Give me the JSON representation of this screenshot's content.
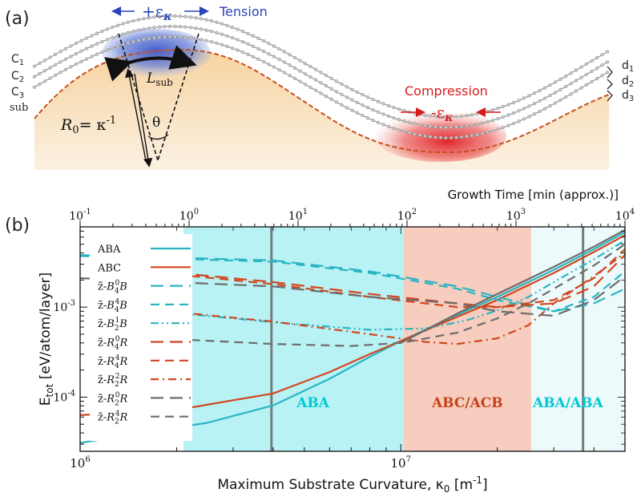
{
  "panel_a": {
    "label": "(a)",
    "tension_label": "Tension",
    "tension_sign": "+ε",
    "tension_sub": "κ",
    "compression_label": "Compression",
    "compression_sign": "-ε",
    "compression_sub": "κ",
    "layer_labels": [
      "C1",
      "C2",
      "C3",
      "sub"
    ],
    "spacing_labels": [
      "d1",
      "d2",
      "d3"
    ],
    "lsub_label": "L",
    "lsub_sub": "sub",
    "radius_label": "R",
    "radius_sub": "0",
    "radius_eq": "= κ",
    "radius_exp": "-1",
    "theta_label": "θ"
  },
  "panel_b": {
    "label": "(b)",
    "top_axis_label": "Growth Time [min (approx.)]",
    "top_ticks": [
      {
        "base": "10",
        "exp": "-1",
        "value": 0.1
      },
      {
        "base": "10",
        "exp": "0",
        "value": 1
      },
      {
        "base": "10",
        "exp": "1",
        "value": 10
      },
      {
        "base": "10",
        "exp": "2",
        "value": 100
      },
      {
        "base": "10",
        "exp": "3",
        "value": 1000
      },
      {
        "base": "10",
        "exp": "4",
        "value": 10000
      }
    ],
    "y_label": "E",
    "y_label_sub": "tot",
    "y_label_unit": " [eV/atom/layer]",
    "x_label": "Maximum Substrate Curvature, κ",
    "x_label_sub": "0",
    "x_label_unit": " [m",
    "x_label_exp": "-1",
    "x_label_end": "]",
    "x_ticks": [
      {
        "base": "10",
        "exp": "6",
        "value": 1000000
      },
      {
        "base": "10",
        "exp": "7",
        "value": 10000000
      }
    ],
    "y_ticks": [
      {
        "base": "10",
        "exp": "-4",
        "value": 0.0001
      },
      {
        "base": "10",
        "exp": "-3",
        "value": 0.001
      }
    ],
    "regions": [
      {
        "label": "ABA",
        "color": "#00c8d2"
      },
      {
        "label": "ABC/ACB",
        "color": "#c8401a"
      },
      {
        "label": "ABA/ABA",
        "color": "#00c8d2"
      }
    ],
    "legend": [
      {
        "text": "ABA",
        "color": "#2ab5c2",
        "dash": "solid"
      },
      {
        "text": "ABC",
        "color": "#d2461e",
        "dash": "solid"
      },
      {
        "pre": "z̃-",
        "sym": "B",
        "sub": "4",
        "sup": "0",
        "post": "B",
        "color": "#2ab5c2",
        "dash": "longdash"
      },
      {
        "pre": "z̃-",
        "sym": "B",
        "sub": "4",
        "sup": "4",
        "post": "B",
        "color": "#2ab5c2",
        "dash": "dash"
      },
      {
        "pre": "z̃-",
        "sym": "B",
        "sub": "2",
        "sup": "1",
        "post": "B",
        "color": "#2ab5c2",
        "dash": "dashdotdot"
      },
      {
        "pre": "z̃-",
        "sym": "R",
        "sub": "4",
        "sup": "0",
        "post": "R",
        "color": "#d2461e",
        "dash": "longdash"
      },
      {
        "pre": "z̃-",
        "sym": "R",
        "sub": "4",
        "sup": "4",
        "post": "R",
        "color": "#d2461e",
        "dash": "dash"
      },
      {
        "pre": "z̃-",
        "sym": "R",
        "sub": "2",
        "sup": "2",
        "post": "R",
        "color": "#d2461e",
        "dash": "dashdot"
      },
      {
        "pre": "z̃-",
        "sym": "R",
        "sub": "2",
        "sup": "0",
        "post": "R",
        "color": "#6d6d6d",
        "dash": "longdash"
      },
      {
        "pre": "z̃-",
        "sym": "R",
        "sub": "2",
        "sup": "4",
        "post": "R",
        "color": "#6d6d6d",
        "dash": "dash"
      }
    ]
  },
  "chart_data": {
    "type": "line",
    "xscale": "log",
    "yscale": "log",
    "xlim": [
      1000000,
      50000000
    ],
    "ylim": [
      2.5e-05,
      0.0078
    ],
    "x2lim": [
      0.1,
      10000
    ],
    "xlabel": "Maximum Substrate Curvature, κ0 [m-1]",
    "ylabel": "Etot [eV/atom/layer]",
    "x2label": "Growth Time [min (approx.)]",
    "shaded_regions": [
      {
        "label": "ABA",
        "x": [
          2100000,
          10200000
        ],
        "color": "#b8f2f4"
      },
      {
        "label": "ABC/ACB",
        "x": [
          10200000,
          25500000
        ],
        "color": "#f6cdbe"
      },
      {
        "label": "ABA/ABA",
        "x": [
          25500000,
          50000000
        ],
        "color": "#ecfafb"
      }
    ],
    "vertical_lines": [
      3950000,
      37000000
    ],
    "series": [
      {
        "name": "ABA",
        "color": "#2ab5c2",
        "dash": "solid",
        "points": [
          [
            1000000,
            3.1e-05
          ],
          [
            2500000,
            5.2e-05
          ],
          [
            4000000,
            8.1e-05
          ],
          [
            6000000,
            0.00016
          ],
          [
            8000000,
            0.00028
          ],
          [
            10000000,
            0.00042
          ],
          [
            15000000,
            0.00082
          ],
          [
            20000000,
            0.0013
          ],
          [
            30000000,
            0.0026
          ],
          [
            40000000,
            0.0044
          ],
          [
            50000000,
            0.0068
          ]
        ]
      },
      {
        "name": "ABC",
        "color": "#d2461e",
        "dash": "solid",
        "points": [
          [
            1000000,
            6.3e-05
          ],
          [
            2000000,
            7.2e-05
          ],
          [
            4000000,
            0.00011
          ],
          [
            6000000,
            0.00019
          ],
          [
            8000000,
            0.0003
          ],
          [
            10000000,
            0.00042
          ],
          [
            15000000,
            0.00078
          ],
          [
            20000000,
            0.0012
          ],
          [
            30000000,
            0.0024
          ],
          [
            40000000,
            0.0041
          ],
          [
            50000000,
            0.0063
          ]
        ]
      },
      {
        "name": "z̃-B40B",
        "color": "#2ab5c2",
        "dash": "longdash",
        "points": [
          [
            1000000,
            0.0038
          ],
          [
            4000000,
            0.0033
          ],
          [
            8000000,
            0.0025
          ],
          [
            15000000,
            0.0017
          ],
          [
            20000000,
            0.0013
          ],
          [
            30000000,
            0.0009
          ],
          [
            40000000,
            0.0011
          ],
          [
            50000000,
            0.0016
          ]
        ]
      },
      {
        "name": "z̃-B44B",
        "color": "#2ab5c2",
        "dash": "dash",
        "points": [
          [
            1000000,
            0.0037
          ],
          [
            4000000,
            0.0032
          ],
          [
            8000000,
            0.0024
          ],
          [
            15000000,
            0.0016
          ],
          [
            20000000,
            0.0012
          ],
          [
            30000000,
            0.0009
          ],
          [
            40000000,
            0.0013
          ],
          [
            50000000,
            0.0025
          ]
        ]
      },
      {
        "name": "z̃-B21B",
        "color": "#2ab5c2",
        "dash": "dashdotdot",
        "points": [
          [
            2000000,
            0.00086
          ],
          [
            4000000,
            0.00068
          ],
          [
            8000000,
            0.00056
          ],
          [
            12000000,
            0.00058
          ],
          [
            16000000,
            0.00071
          ],
          [
            20000000,
            0.00092
          ],
          [
            25000000,
            0.0013
          ],
          [
            30000000,
            0.0019
          ],
          [
            40000000,
            0.0034
          ],
          [
            50000000,
            0.0055
          ]
        ]
      },
      {
        "name": "z̃-R40R",
        "color": "#d2461e",
        "dash": "longdash",
        "points": [
          [
            2000000,
            0.0024
          ],
          [
            4000000,
            0.0019
          ],
          [
            8000000,
            0.0014
          ],
          [
            15000000,
            0.0011
          ],
          [
            20000000,
            0.001
          ],
          [
            30000000,
            0.0011
          ],
          [
            40000000,
            0.0017
          ],
          [
            50000000,
            0.0038
          ]
        ]
      },
      {
        "name": "z̃-R44R",
        "color": "#d2461e",
        "dash": "dash",
        "points": [
          [
            2000000,
            0.0023
          ],
          [
            4000000,
            0.0018
          ],
          [
            8000000,
            0.0013
          ],
          [
            15000000,
            0.001
          ],
          [
            20000000,
            0.001
          ],
          [
            30000000,
            0.0012
          ],
          [
            40000000,
            0.0021
          ],
          [
            50000000,
            0.0044
          ]
        ]
      },
      {
        "name": "z̃-R22R",
        "color": "#d2461e",
        "dash": "dashdot",
        "points": [
          [
            2000000,
            0.00088
          ],
          [
            4000000,
            0.00069
          ],
          [
            8000000,
            0.0005
          ],
          [
            12000000,
            0.00041
          ],
          [
            15000000,
            0.00039
          ],
          [
            20000000,
            0.00045
          ],
          [
            25000000,
            0.00063
          ],
          [
            30000000,
            0.0011
          ],
          [
            40000000,
            0.0022
          ],
          [
            50000000,
            0.004
          ]
        ]
      },
      {
        "name": "z̃-R20R",
        "color": "#6d6d6d",
        "dash": "longdash",
        "points": [
          [
            1000000,
            0.0021
          ],
          [
            4000000,
            0.0017
          ],
          [
            8000000,
            0.0013
          ],
          [
            15000000,
            0.0011
          ],
          [
            20000000,
            0.0009
          ],
          [
            30000000,
            0.0008
          ],
          [
            40000000,
            0.0012
          ],
          [
            50000000,
            0.0022
          ]
        ]
      },
      {
        "name": "z̃-R24R",
        "color": "#6d6d6d",
        "dash": "dash",
        "points": [
          [
            2000000,
            0.00044
          ],
          [
            4000000,
            0.00039
          ],
          [
            7000000,
            0.00037
          ],
          [
            10000000,
            0.0004
          ],
          [
            15000000,
            0.00052
          ],
          [
            20000000,
            0.00075
          ],
          [
            25000000,
            0.0011
          ],
          [
            30000000,
            0.0016
          ],
          [
            40000000,
            0.0029
          ],
          [
            50000000,
            0.005
          ]
        ]
      },
      {
        "name": "gray",
        "color": "#6d6d6d",
        "dash": "solid",
        "points": [
          [
            10000000,
            0.0004
          ],
          [
            15000000,
            0.00085
          ],
          [
            20000000,
            0.0014
          ],
          [
            30000000,
            0.0028
          ],
          [
            40000000,
            0.0047
          ],
          [
            50000000,
            0.0072
          ]
        ]
      }
    ]
  }
}
